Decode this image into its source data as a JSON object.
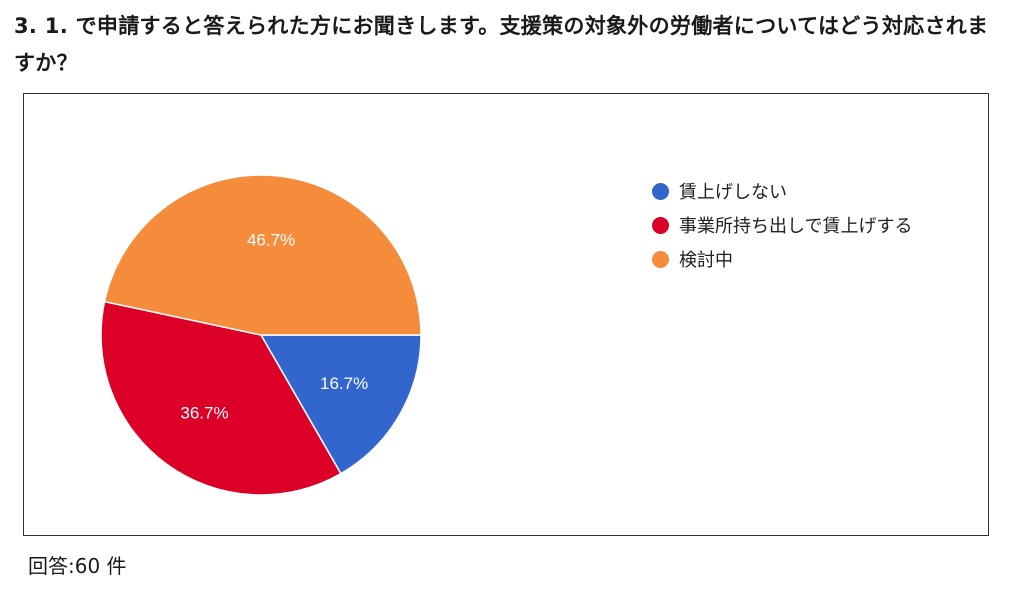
{
  "question": {
    "text": "3. 1. で申請すると答えられた方にお聞きします。支援策の対象外の労働者についてはどう対応されますか？"
  },
  "footer": {
    "responses": "回答:60 件"
  },
  "chart_data": {
    "type": "pie",
    "slices": [
      {
        "label": "賃上げしない",
        "value": 16.7,
        "display": "16.7%",
        "color": "#3366cc"
      },
      {
        "label": "事業所持ち出しで賃上げする",
        "value": 36.7,
        "display": "36.7%",
        "color": "#dc0028"
      },
      {
        "label": "検討中",
        "value": 46.7,
        "display": "46.7%",
        "color": "#f48c3c"
      }
    ],
    "legend_position": "right",
    "start_direction": "3 o'clock, clockwise"
  }
}
